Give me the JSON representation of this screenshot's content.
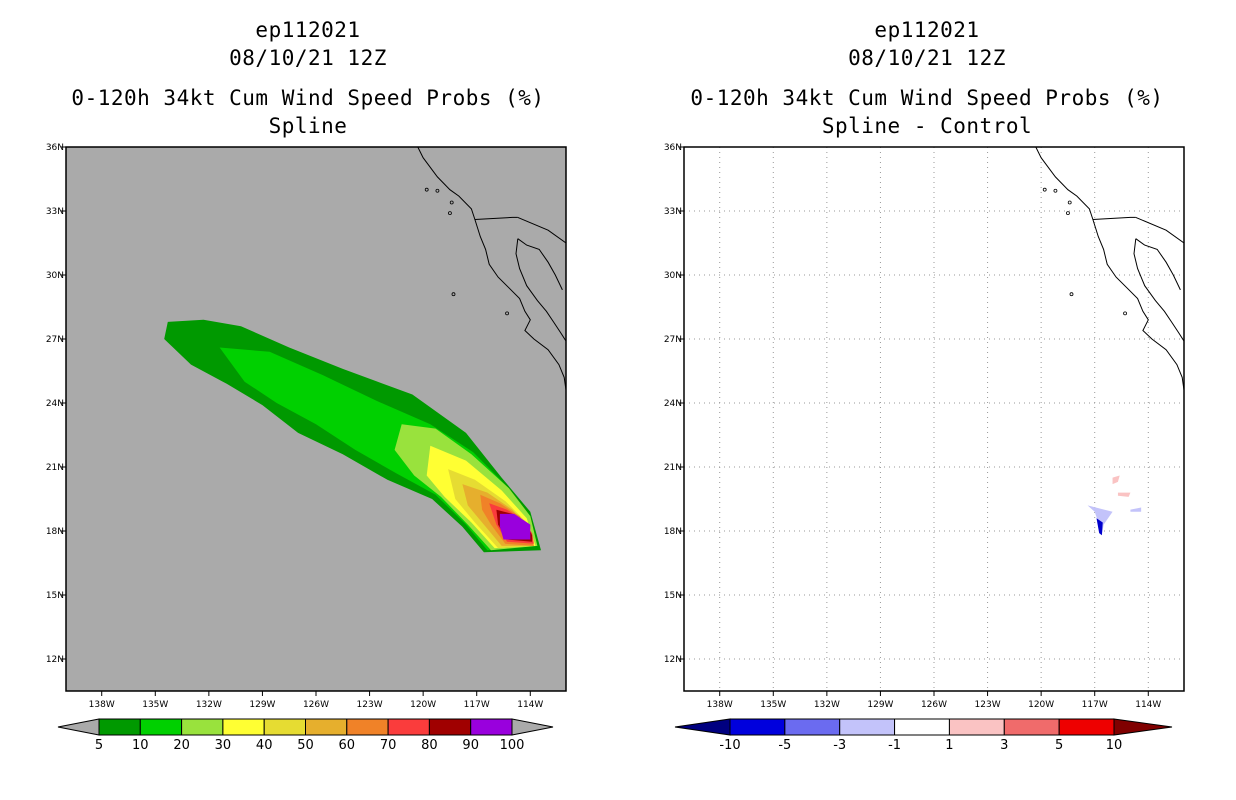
{
  "chart_data": [
    {
      "type": "heatmap",
      "title_lines": [
        "ep112021",
        "08/10/21 12Z",
        "0-120h 34kt Cum Wind Speed Probs (%)",
        "Spline"
      ],
      "xlim": [
        -140,
        -112
      ],
      "ylim": [
        10.5,
        36
      ],
      "x_ticks": [
        {
          "value": -138,
          "label": "138W"
        },
        {
          "value": -135,
          "label": "135W"
        },
        {
          "value": -132,
          "label": "132W"
        },
        {
          "value": -129,
          "label": "129W"
        },
        {
          "value": -126,
          "label": "126W"
        },
        {
          "value": -123,
          "label": "123W"
        },
        {
          "value": -120,
          "label": "120W"
        },
        {
          "value": -117,
          "label": "117W"
        },
        {
          "value": -114,
          "label": "114W"
        }
      ],
      "y_ticks": [
        {
          "value": 12,
          "label": "12N"
        },
        {
          "value": 15,
          "label": "15N"
        },
        {
          "value": 18,
          "label": "18N"
        },
        {
          "value": 21,
          "label": "21N"
        },
        {
          "value": 24,
          "label": "24N"
        },
        {
          "value": 27,
          "label": "27N"
        },
        {
          "value": 30,
          "label": "30N"
        },
        {
          "value": 33,
          "label": "33N"
        },
        {
          "value": 36,
          "label": "36N"
        }
      ],
      "background_color": "#aaaaaa",
      "grid": false,
      "colorbar": {
        "labels": [
          "5",
          "10",
          "20",
          "30",
          "40",
          "50",
          "60",
          "70",
          "80",
          "90",
          "100"
        ],
        "colors": [
          "#009900",
          "#00d000",
          "#99e23d",
          "#ffff33",
          "#e6dc32",
          "#e6af2d",
          "#f08228",
          "#fa3c3c",
          "#a00000",
          "#9900dd"
        ],
        "end_color": "#aaaaaa"
      },
      "contours": [
        {
          "level": 5,
          "color": "#009900"
        },
        {
          "level": 10,
          "color": "#00d000"
        },
        {
          "level": 20,
          "color": "#99e23d"
        },
        {
          "level": 30,
          "color": "#ffff33"
        },
        {
          "level": 40,
          "color": "#e6dc32"
        },
        {
          "level": 50,
          "color": "#e6af2d"
        },
        {
          "level": 60,
          "color": "#f08228"
        },
        {
          "level": 70,
          "color": "#fa3c3c"
        },
        {
          "level": 80,
          "color": "#a00000"
        },
        {
          "level": 90,
          "color": "#9900dd"
        }
      ]
    },
    {
      "type": "heatmap",
      "title_lines": [
        "ep112021",
        "08/10/21 12Z",
        "0-120h 34kt Cum Wind Speed Probs (%)",
        "Spline - Control"
      ],
      "xlim": [
        -140,
        -112
      ],
      "ylim": [
        10.5,
        36
      ],
      "x_ticks": [
        {
          "value": -138,
          "label": "138W"
        },
        {
          "value": -135,
          "label": "135W"
        },
        {
          "value": -132,
          "label": "132W"
        },
        {
          "value": -129,
          "label": "129W"
        },
        {
          "value": -126,
          "label": "126W"
        },
        {
          "value": -123,
          "label": "123W"
        },
        {
          "value": -120,
          "label": "120W"
        },
        {
          "value": -117,
          "label": "117W"
        },
        {
          "value": -114,
          "label": "114W"
        }
      ],
      "y_ticks": [
        {
          "value": 12,
          "label": "12N"
        },
        {
          "value": 15,
          "label": "15N"
        },
        {
          "value": 18,
          "label": "18N"
        },
        {
          "value": 21,
          "label": "21N"
        },
        {
          "value": 24,
          "label": "24N"
        },
        {
          "value": 27,
          "label": "27N"
        },
        {
          "value": 30,
          "label": "30N"
        },
        {
          "value": 33,
          "label": "33N"
        },
        {
          "value": 36,
          "label": "36N"
        }
      ],
      "background_color": "#ffffff",
      "grid": true,
      "colorbar": {
        "labels": [
          "-10",
          "-5",
          "-3",
          "-1",
          "1",
          "3",
          "5",
          "10"
        ],
        "colors": [
          "#0000dd",
          "#6b6bf0",
          "#c3c3fa",
          "#ffffff",
          "#fac3c3",
          "#f06b6b",
          "#ee0000"
        ],
        "start_color": "#000080",
        "end_color": "#800000"
      },
      "anomalies": [
        {
          "label": "-10 to -5 core",
          "color": "#0000cc"
        },
        {
          "label": "-3 to -1",
          "color": "#c3c3fa"
        },
        {
          "label": "1 to 3",
          "color": "#fac3c3"
        }
      ]
    }
  ]
}
